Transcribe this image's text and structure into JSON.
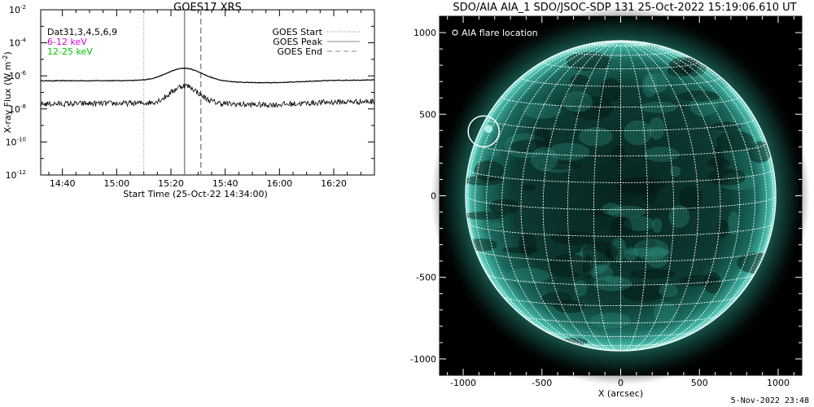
{
  "chart_data": [
    {
      "type": "line",
      "title": "GOES17 XRS",
      "xlabel": "Start Time (25-Oct-22 14:34:00)",
      "ylabel": "X-ray Flux (W m",
      "ylabel_sup": "-2",
      "ylabel_close": ")",
      "yscale": "log",
      "ylim": [
        1e-12,
        0.01
      ],
      "xlim_minutes": [
        -8,
        115
      ],
      "x_ticks": [
        "14:40",
        "15:00",
        "15:20",
        "15:40",
        "16:00",
        "16:20"
      ],
      "y_ticks": [
        {
          "base": "10",
          "exp": "-2",
          "v": -2
        },
        {
          "base": "10",
          "exp": "-4",
          "v": -4
        },
        {
          "base": "10",
          "exp": "-6",
          "v": -6
        },
        {
          "base": "10",
          "exp": "-8",
          "v": -8
        },
        {
          "base": "10",
          "exp": "-10",
          "v": -10
        },
        {
          "base": "10",
          "exp": "-12",
          "v": -12
        }
      ],
      "legend_left": {
        "quality": "Dat31,3,4,5,6,9",
        "band1": "6-12 keV",
        "band2": "12-25 keV"
      },
      "legend_right": {
        "start": "GOES Start",
        "peak": "GOES Peak",
        "end": "GOES End"
      },
      "events_minutes": {
        "start": 30,
        "peak": 45,
        "end": 51
      },
      "series": [
        {
          "name": "6-12 keV",
          "color": "#000000",
          "baseline_log": -6.3,
          "peak_log": -5.55
        },
        {
          "name": "12-25 keV",
          "color": "#000000",
          "baseline_log": -7.7,
          "peak_log": -6.65
        }
      ]
    },
    {
      "type": "image",
      "title": "SDO/AIA AIA_1 SDO/JSOC-SDP 131 25-Oct-2022 15:19:06.610 UT",
      "xlabel": "X (arcsec)",
      "xlim": [
        -1150,
        1150
      ],
      "ylim": [
        -1100,
        1100
      ],
      "x_ticks": [
        "-1000",
        "-500",
        "0",
        "500",
        "1000"
      ],
      "y_ticks": [
        "1000",
        "500",
        "0",
        "-500",
        "-1000"
      ],
      "legend": "AIA flare location",
      "flare_location": {
        "x": -870,
        "y": 395
      }
    }
  ],
  "footer_date": "5-Nov-2022 23:48"
}
